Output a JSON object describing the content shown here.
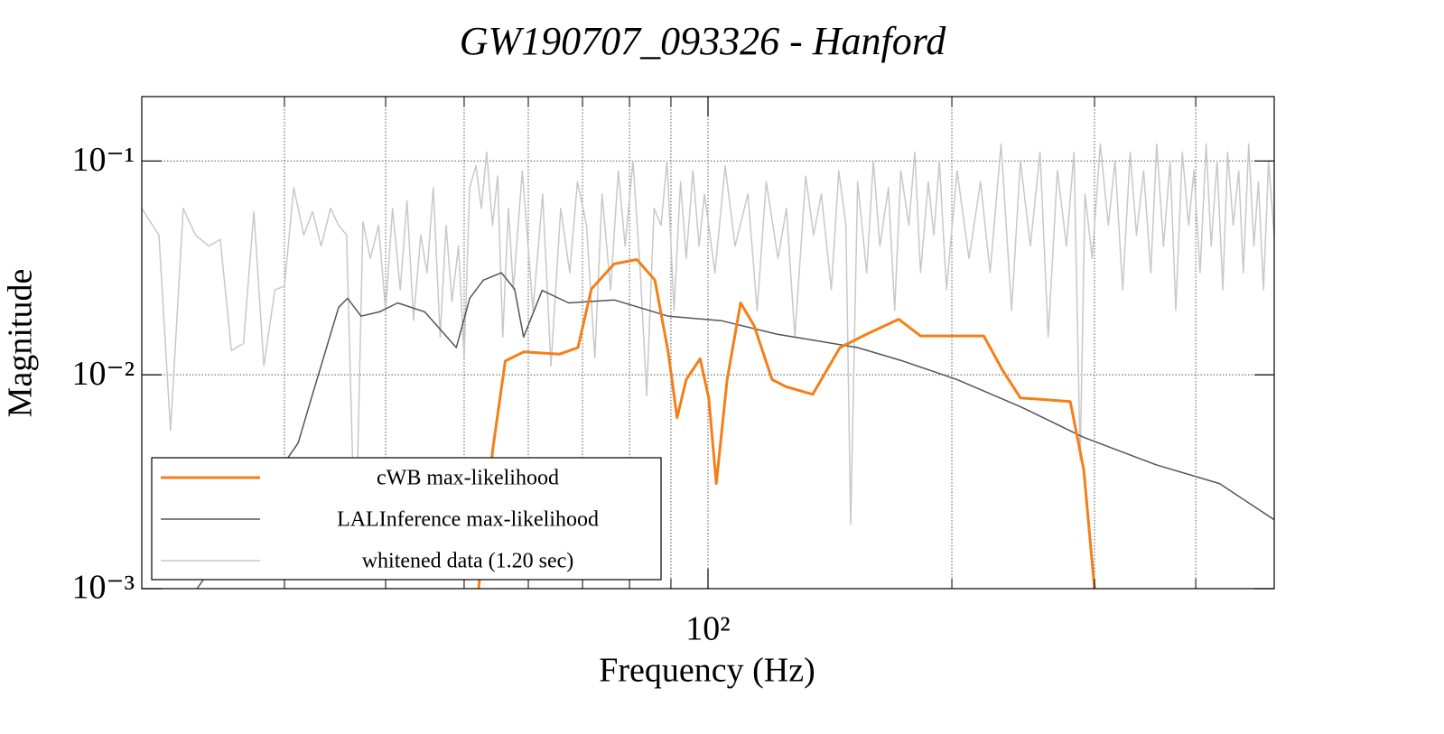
{
  "chart_data": {
    "type": "line",
    "title": "GW190707_093326 - Hanford",
    "x_label": "Frequency (Hz)",
    "y_label": "Magnitude",
    "xlog": true,
    "ylog": true,
    "grid": true,
    "legend": "lower left",
    "xlim": [
      20,
      500
    ],
    "ylim": [
      0.001,
      0.2
    ],
    "xticks": [
      {
        "value": 100,
        "label": "10²"
      }
    ],
    "xminor": [
      30,
      40,
      50,
      60,
      70,
      80,
      90,
      200,
      300,
      400
    ],
    "yticks": [
      {
        "value": 0.001,
        "label": "10⁻³"
      },
      {
        "value": 0.01,
        "label": "10⁻²"
      },
      {
        "value": 0.1,
        "label": "10⁻¹"
      }
    ],
    "series": [
      {
        "name": "whitened data (1.20 sec)",
        "color": "#c8c8c8",
        "width": 1.5,
        "x": [
          20,
          21,
          21.7,
          22.5,
          23.3,
          24.2,
          25,
          25.8,
          26.7,
          27.5,
          28.3,
          29.2,
          30,
          30.8,
          31.7,
          32.5,
          33.3,
          34.2,
          35,
          35.8,
          36.7,
          37.5,
          38.3,
          39.2,
          40,
          40.8,
          41.7,
          42.5,
          43.3,
          44.2,
          45,
          45.8,
          46.7,
          47.5,
          48.3,
          49.2,
          50,
          50.8,
          51.7,
          52.5,
          53.3,
          54.2,
          55,
          55.8,
          56.7,
          57.5,
          59,
          60.8,
          62.5,
          64,
          65.8,
          67.5,
          69,
          70.8,
          72.5,
          74,
          75.8,
          77.5,
          79,
          80.8,
          82.5,
          84,
          85.8,
          87.5,
          89,
          90.8,
          92.5,
          94,
          95.8,
          97.5,
          99,
          102,
          105,
          108,
          112,
          115,
          118,
          122,
          125,
          128,
          132,
          135,
          138,
          142,
          145,
          148,
          150,
          153,
          157,
          160,
          163,
          167,
          170,
          173,
          177,
          180,
          183,
          187,
          190,
          193,
          197,
          203,
          210,
          217,
          223,
          230,
          237,
          243,
          250,
          257,
          263,
          270,
          277,
          283,
          288,
          292,
          298,
          305,
          312,
          318,
          325,
          332,
          338,
          345,
          352,
          358,
          365,
          372,
          378,
          385,
          392,
          398,
          405,
          412,
          418,
          425,
          432,
          438,
          445,
          452,
          458,
          465,
          472,
          478,
          485,
          492,
          500
        ],
        "values": [
          0.06,
          0.045,
          0.0055,
          0.06,
          0.045,
          0.04,
          0.043,
          0.013,
          0.014,
          0.058,
          0.011,
          0.025,
          0.026,
          0.075,
          0.045,
          0.058,
          0.04,
          0.06,
          0.05,
          0.045,
          0.0013,
          0.052,
          0.035,
          0.05,
          0.02,
          0.06,
          0.025,
          0.065,
          0.018,
          0.045,
          0.03,
          0.075,
          0.015,
          0.05,
          0.022,
          0.04,
          0.012,
          0.075,
          0.095,
          0.06,
          0.11,
          0.05,
          0.085,
          0.015,
          0.06,
          0.025,
          0.09,
          0.02,
          0.07,
          0.011,
          0.06,
          0.03,
          0.08,
          0.05,
          0.012,
          0.07,
          0.025,
          0.09,
          0.04,
          0.1,
          0.03,
          0.008,
          0.06,
          0.05,
          0.1,
          0.02,
          0.08,
          0.035,
          0.09,
          0.04,
          0.07,
          0.03,
          0.095,
          0.04,
          0.07,
          0.02,
          0.08,
          0.035,
          0.06,
          0.015,
          0.085,
          0.045,
          0.07,
          0.025,
          0.09,
          0.05,
          0.002,
          0.08,
          0.03,
          0.1,
          0.04,
          0.075,
          0.02,
          0.09,
          0.05,
          0.11,
          0.03,
          0.08,
          0.045,
          0.1,
          0.025,
          0.09,
          0.035,
          0.08,
          0.03,
          0.12,
          0.02,
          0.1,
          0.04,
          0.11,
          0.015,
          0.09,
          0.04,
          0.11,
          0.004,
          0.07,
          0.035,
          0.12,
          0.05,
          0.1,
          0.025,
          0.11,
          0.045,
          0.09,
          0.03,
          0.12,
          0.04,
          0.1,
          0.02,
          0.11,
          0.05,
          0.09,
          0.03,
          0.12,
          0.04,
          0.1,
          0.025,
          0.11,
          0.05,
          0.09,
          0.03,
          0.12,
          0.04,
          0.08,
          0.025,
          0.1,
          0.045
        ]
      },
      {
        "name": "LALInference max-likelihood",
        "color": "#555555",
        "width": 1.5,
        "x": [
          23.4,
          31.2,
          32.4,
          35,
          35.9,
          37.3,
          39.3,
          41.4,
          44.7,
          48.9,
          50.8,
          52.8,
          55.6,
          57.7,
          59.2,
          62.4,
          67.3,
          76.6,
          89.3,
          104,
          121.6,
          153,
          174,
          203,
          243,
          291,
          357,
          428,
          500
        ],
        "values": [
          0.001,
          0.0048,
          0.0078,
          0.0207,
          0.0228,
          0.0188,
          0.0197,
          0.0217,
          0.0197,
          0.0134,
          0.0228,
          0.0277,
          0.03,
          0.0252,
          0.015,
          0.0248,
          0.0217,
          0.0224,
          0.0188,
          0.0179,
          0.0155,
          0.0134,
          0.0116,
          0.0095,
          0.0071,
          0.0051,
          0.0038,
          0.0031,
          0.0021
        ]
      },
      {
        "name": "cWB max-likelihood",
        "color": "#f47f17",
        "width": 3,
        "x": [
          52.1,
          54.2,
          56.2,
          59.2,
          65.6,
          69.1,
          71.8,
          76.6,
          81.7,
          86,
          89.3,
          91.6,
          94,
          97.8,
          100.2,
          102.4,
          105.6,
          109.7,
          114,
          120,
          124.8,
          134.7,
          145.5,
          157,
          171.9,
          183,
          219,
          231,
          243,
          280,
          291,
          300
        ],
        "values": [
          0.001,
          0.0044,
          0.0116,
          0.0128,
          0.0125,
          0.0134,
          0.0252,
          0.033,
          0.0346,
          0.0277,
          0.0128,
          0.0063,
          0.0095,
          0.0119,
          0.0078,
          0.0031,
          0.0095,
          0.0217,
          0.017,
          0.0095,
          0.0088,
          0.0081,
          0.0134,
          0.0155,
          0.0182,
          0.0152,
          0.0152,
          0.0105,
          0.0078,
          0.0075,
          0.0036,
          0.001
        ]
      }
    ],
    "legend_order": [
      2,
      1,
      0
    ]
  }
}
